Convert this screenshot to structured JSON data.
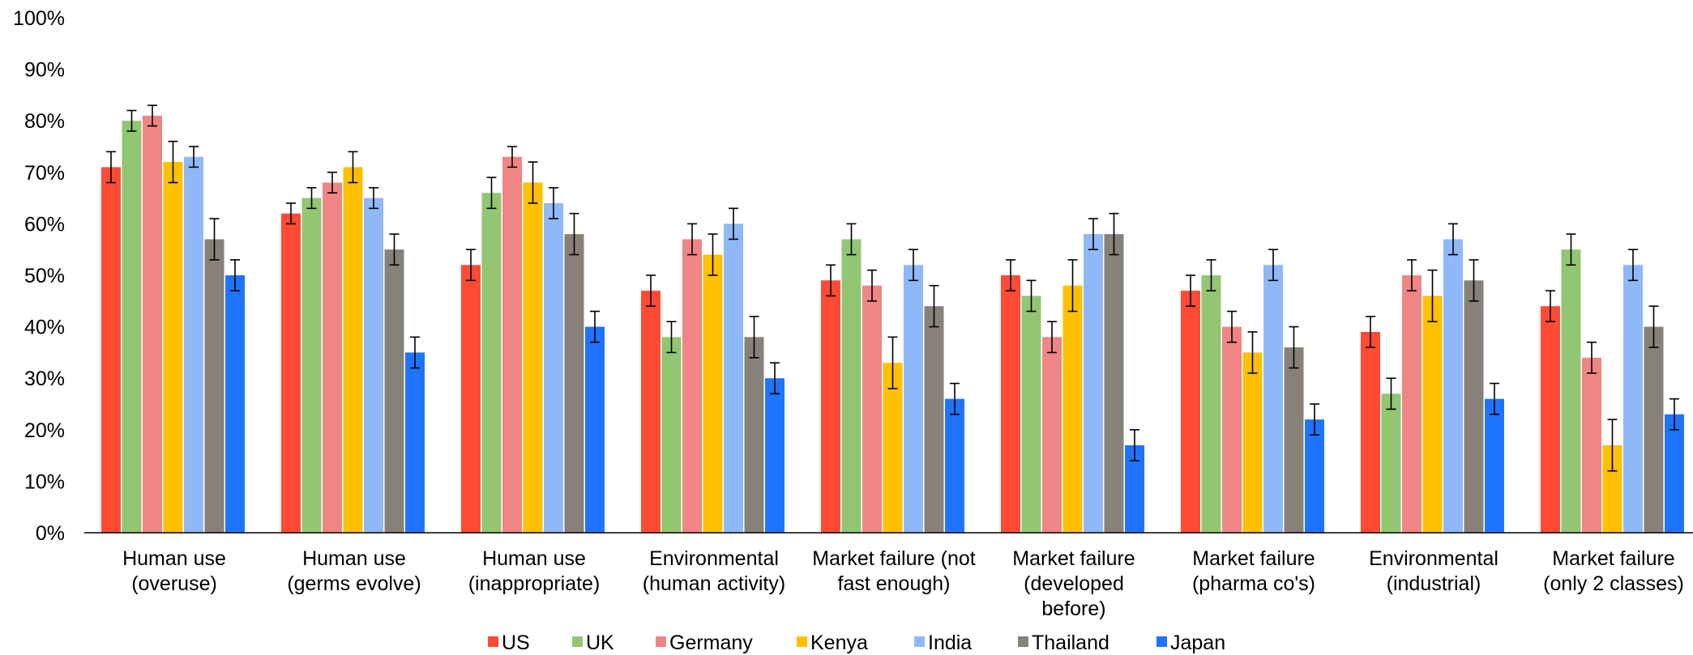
{
  "chart_data": {
    "type": "bar",
    "ylim": [
      0,
      100
    ],
    "y_ticks": [
      "0%",
      "10%",
      "20%",
      "30%",
      "40%",
      "50%",
      "60%",
      "70%",
      "80%",
      "90%",
      "100%"
    ],
    "grid": false,
    "legend_position": "bottom",
    "error_bars": true,
    "categories": [
      [
        "Human use",
        "(overuse)"
      ],
      [
        "Human use",
        "(germs evolve)"
      ],
      [
        "Human use",
        "(inappropriate)"
      ],
      [
        "Environmental",
        "(human activity)"
      ],
      [
        "Market failure (not",
        "fast enough)"
      ],
      [
        "Market failure",
        "(developed",
        "before)"
      ],
      [
        "Market failure",
        "(pharma co's)"
      ],
      [
        "Environmental",
        "(industrial)"
      ],
      [
        "Market failure",
        "(only 2 classes)"
      ]
    ],
    "series": [
      {
        "name": "US",
        "color": "#FF4B33",
        "values": [
          71,
          62,
          52,
          47,
          49,
          50,
          47,
          39,
          44
        ],
        "err_low": [
          68,
          60,
          49,
          44,
          46,
          47,
          44,
          36,
          41
        ],
        "err_high": [
          74,
          64,
          55,
          50,
          52,
          53,
          50,
          42,
          47
        ]
      },
      {
        "name": "UK",
        "color": "#92C672",
        "values": [
          80,
          65,
          66,
          38,
          57,
          46,
          50,
          27,
          55
        ],
        "err_low": [
          78,
          63,
          63,
          35,
          54,
          43,
          47,
          24,
          52
        ],
        "err_high": [
          82,
          67,
          69,
          41,
          60,
          49,
          53,
          30,
          58
        ]
      },
      {
        "name": "Germany",
        "color": "#F08585",
        "values": [
          81,
          68,
          73,
          57,
          48,
          38,
          40,
          50,
          34
        ],
        "err_low": [
          79,
          66,
          71,
          54,
          45,
          35,
          37,
          47,
          31
        ],
        "err_high": [
          83,
          70,
          75,
          60,
          51,
          41,
          43,
          53,
          37
        ]
      },
      {
        "name": "Kenya",
        "color": "#FFC000",
        "values": [
          72,
          71,
          68,
          54,
          33,
          48,
          35,
          46,
          17
        ],
        "err_low": [
          68,
          68,
          64,
          50,
          28,
          43,
          31,
          41,
          12
        ],
        "err_high": [
          76,
          74,
          72,
          58,
          38,
          53,
          39,
          51,
          22
        ]
      },
      {
        "name": "India",
        "color": "#8FB8F8",
        "values": [
          73,
          65,
          64,
          60,
          52,
          58,
          52,
          57,
          52
        ],
        "err_low": [
          71,
          63,
          61,
          57,
          49,
          55,
          49,
          54,
          49
        ],
        "err_high": [
          75,
          67,
          67,
          63,
          55,
          61,
          55,
          60,
          55
        ]
      },
      {
        "name": "Thailand",
        "color": "#878179",
        "values": [
          57,
          55,
          58,
          38,
          44,
          58,
          36,
          49,
          40
        ],
        "err_low": [
          53,
          52,
          54,
          34,
          40,
          54,
          32,
          45,
          36
        ],
        "err_high": [
          61,
          58,
          62,
          42,
          48,
          62,
          40,
          53,
          44
        ]
      },
      {
        "name": "Japan",
        "color": "#1E74FE",
        "values": [
          50,
          35,
          40,
          30,
          26,
          17,
          22,
          26,
          23
        ],
        "err_low": [
          47,
          32,
          37,
          27,
          23,
          14,
          19,
          23,
          20
        ],
        "err_high": [
          53,
          38,
          43,
          33,
          29,
          20,
          25,
          29,
          26
        ]
      }
    ]
  }
}
